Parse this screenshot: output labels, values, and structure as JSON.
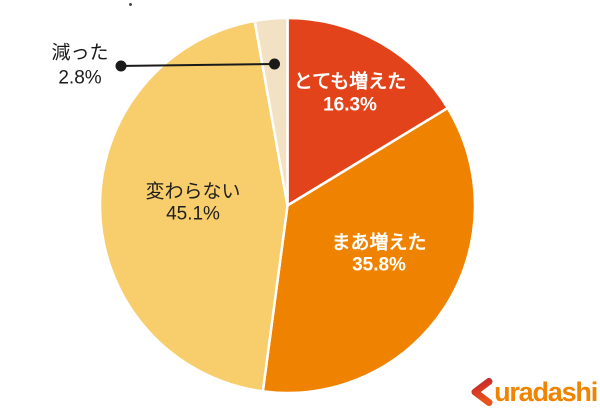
{
  "background": "#FFFFFF",
  "chart_data": {
    "type": "pie",
    "title": "",
    "unit": "%",
    "start_angle_deg": 0,
    "direction": "clockwise",
    "legend": "none",
    "slices": [
      {
        "label": "とても増えた",
        "value": 16.3,
        "display": "16.3%",
        "color": "#E3431A",
        "label_color": "#FFFFFF",
        "label_placement": "inside"
      },
      {
        "label": "まあ増えた",
        "value": 35.8,
        "display": "35.8%",
        "color": "#EF8300",
        "label_color": "#FFFFFF",
        "label_placement": "inside"
      },
      {
        "label": "変わらない",
        "value": 45.1,
        "display": "45.1%",
        "color": "#F8CE6D",
        "label_color": "#1F1F1F",
        "label_placement": "inside"
      },
      {
        "label": "減った",
        "value": 2.8,
        "display": "2.8%",
        "color": "#F2E1C2",
        "label_color": "#1A1A1A",
        "label_placement": "outside_callout"
      }
    ],
    "callout": {
      "color": "#1A1A1A"
    },
    "slice_border_color": "#FFFFFF"
  },
  "logo": {
    "full": "Kuradashi",
    "k": "K",
    "rest": "uradashi",
    "text_color": "#F08300",
    "k_color_top": "#C5252B",
    "k_color_bottom": "#E8531C"
  }
}
